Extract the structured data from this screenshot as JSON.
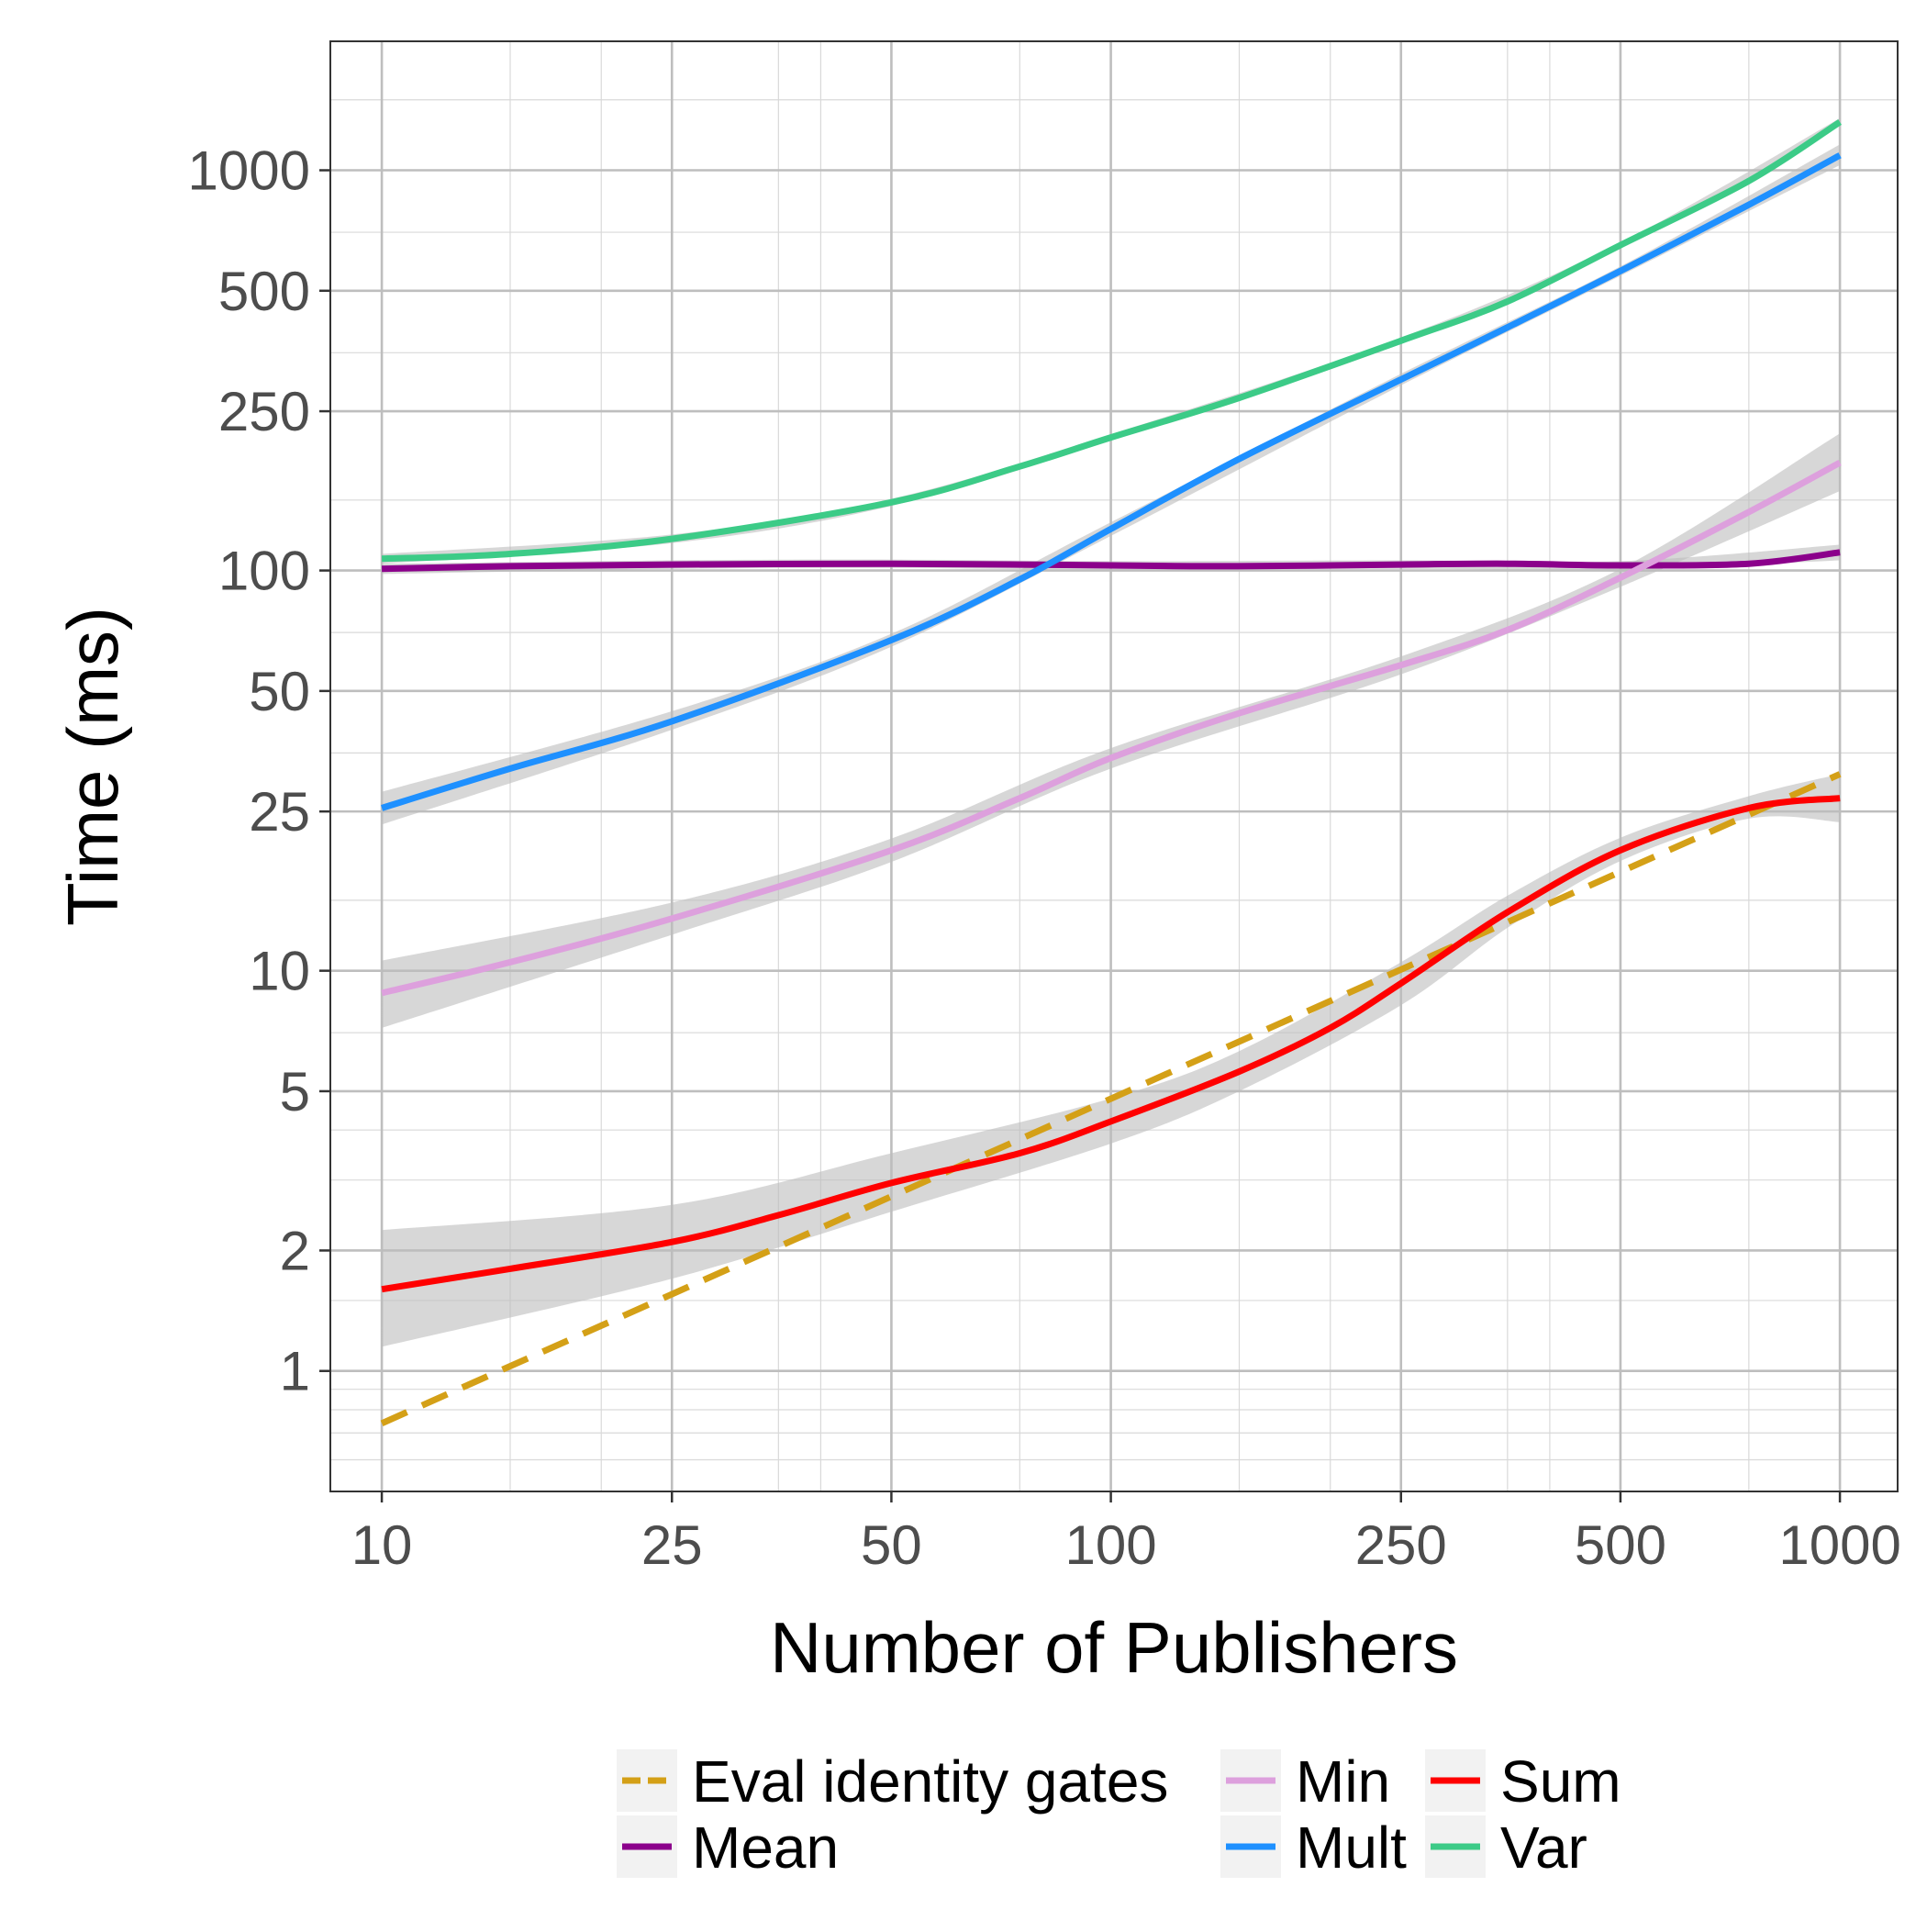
{
  "chart_data": {
    "type": "line",
    "title": "",
    "xlabel": "Number of Publishers",
    "ylabel": "Time (ms)",
    "x_scale": "log10",
    "y_scale": "log10",
    "xlim": [
      8.5,
      1200
    ],
    "ylim": [
      0.5,
      2100
    ],
    "x_ticks": [
      10,
      25,
      50,
      100,
      250,
      500,
      1000
    ],
    "x_tick_labels": [
      "10",
      "25",
      "50",
      "100",
      "250",
      "500",
      "1000"
    ],
    "y_ticks": [
      1,
      2,
      5,
      10,
      25,
      50,
      100,
      250,
      500,
      1000
    ],
    "y_tick_labels": [
      "1",
      "2",
      "5",
      "10",
      "25",
      "50",
      "100",
      "250",
      "500",
      "1000"
    ],
    "grid": true,
    "legend_position": "bottom",
    "series": [
      {
        "name": "Eval identity gates",
        "color": "#D4A017",
        "dash": true,
        "confidence_band": false,
        "points": [
          [
            10,
            0.74
          ],
          [
            1000,
            31
          ]
        ]
      },
      {
        "name": "Mean",
        "color": "#8B008B",
        "dash": false,
        "confidence_band": true,
        "points": [
          [
            10,
            101
          ],
          [
            15,
            102.5
          ],
          [
            25,
            103.5
          ],
          [
            50,
            104
          ],
          [
            75,
            103.5
          ],
          [
            100,
            103
          ],
          [
            150,
            102.5
          ],
          [
            250,
            103.5
          ],
          [
            350,
            104
          ],
          [
            500,
            103
          ],
          [
            750,
            104
          ],
          [
            1000,
            111
          ]
        ],
        "band": [
          [
            10,
            98,
            104
          ],
          [
            25,
            101,
            106
          ],
          [
            50,
            101.5,
            106.5
          ],
          [
            100,
            100.5,
            105.5
          ],
          [
            250,
            101,
            106
          ],
          [
            500,
            100.5,
            105.5
          ],
          [
            1000,
            106,
            116
          ]
        ]
      },
      {
        "name": "Min",
        "color": "#DDA0DD",
        "dash": false,
        "confidence_band": true,
        "points": [
          [
            10,
            8.8
          ],
          [
            15,
            10.5
          ],
          [
            25,
            13.5
          ],
          [
            50,
            20
          ],
          [
            75,
            27
          ],
          [
            100,
            34
          ],
          [
            150,
            44
          ],
          [
            250,
            58
          ],
          [
            350,
            71
          ],
          [
            500,
            96
          ],
          [
            750,
            140
          ],
          [
            1000,
            186
          ]
        ],
        "band": [
          [
            10,
            7.2,
            10.6
          ],
          [
            25,
            12.3,
            14.8
          ],
          [
            50,
            18.7,
            21.4
          ],
          [
            100,
            32,
            36
          ],
          [
            250,
            55,
            61
          ],
          [
            500,
            91,
            101
          ],
          [
            1000,
            158,
            220
          ]
        ]
      },
      {
        "name": "Mult",
        "color": "#1E90FF",
        "dash": false,
        "confidence_band": true,
        "points": [
          [
            10,
            25.5
          ],
          [
            15,
            32
          ],
          [
            25,
            42
          ],
          [
            50,
            67
          ],
          [
            75,
            95
          ],
          [
            100,
            127
          ],
          [
            150,
            190
          ],
          [
            250,
            300
          ],
          [
            350,
            405
          ],
          [
            500,
            560
          ],
          [
            750,
            820
          ],
          [
            1000,
            1090
          ]
        ],
        "band": [
          [
            10,
            23.2,
            28
          ],
          [
            25,
            40,
            44.5
          ],
          [
            50,
            64.5,
            69.5
          ],
          [
            100,
            122,
            132
          ],
          [
            250,
            290,
            310
          ],
          [
            500,
            545,
            575
          ],
          [
            1000,
            1030,
            1160
          ]
        ]
      },
      {
        "name": "Sum",
        "color": "#FF0000",
        "dash": false,
        "confidence_band": true,
        "points": [
          [
            10,
            1.6
          ],
          [
            15,
            1.8
          ],
          [
            25,
            2.1
          ],
          [
            35,
            2.45
          ],
          [
            50,
            2.95
          ],
          [
            75,
            3.5
          ],
          [
            100,
            4.2
          ],
          [
            150,
            5.6
          ],
          [
            200,
            7.2
          ],
          [
            250,
            9.3
          ],
          [
            350,
            14
          ],
          [
            500,
            20
          ],
          [
            750,
            25.5
          ],
          [
            1000,
            27
          ]
        ],
        "band": [
          [
            10,
            1.15,
            2.25
          ],
          [
            25,
            1.7,
            2.6
          ],
          [
            50,
            2.5,
            3.5
          ],
          [
            100,
            3.7,
            4.8
          ],
          [
            150,
            5.0,
            6.3
          ],
          [
            250,
            8.2,
            10.5
          ],
          [
            350,
            12.8,
            15.4
          ],
          [
            500,
            18.8,
            21.5
          ],
          [
            750,
            24,
            27.3
          ],
          [
            1000,
            23.5,
            31
          ]
        ]
      },
      {
        "name": "Var",
        "color": "#3CCB87",
        "dash": false,
        "confidence_band": true,
        "points": [
          [
            10,
            107
          ],
          [
            15,
            110
          ],
          [
            25,
            120
          ],
          [
            50,
            148
          ],
          [
            75,
            182
          ],
          [
            100,
            215
          ],
          [
            150,
            270
          ],
          [
            250,
            375
          ],
          [
            350,
            470
          ],
          [
            500,
            650
          ],
          [
            750,
            940
          ],
          [
            1000,
            1320
          ]
        ],
        "band": [
          [
            10,
            104,
            110
          ],
          [
            25,
            117,
            123
          ],
          [
            50,
            145,
            151
          ],
          [
            100,
            211,
            219
          ],
          [
            250,
            368,
            382
          ],
          [
            500,
            640,
            660
          ],
          [
            1000,
            1290,
            1350
          ]
        ]
      }
    ],
    "legend": {
      "items": [
        {
          "label": "Eval identity gates",
          "series": "Eval identity gates"
        },
        {
          "label": "Mean",
          "series": "Mean"
        },
        {
          "label": "Min",
          "series": "Min"
        },
        {
          "label": "Mult",
          "series": "Mult"
        },
        {
          "label": "Sum",
          "series": "Sum"
        },
        {
          "label": "Var",
          "series": "Var"
        }
      ]
    }
  }
}
